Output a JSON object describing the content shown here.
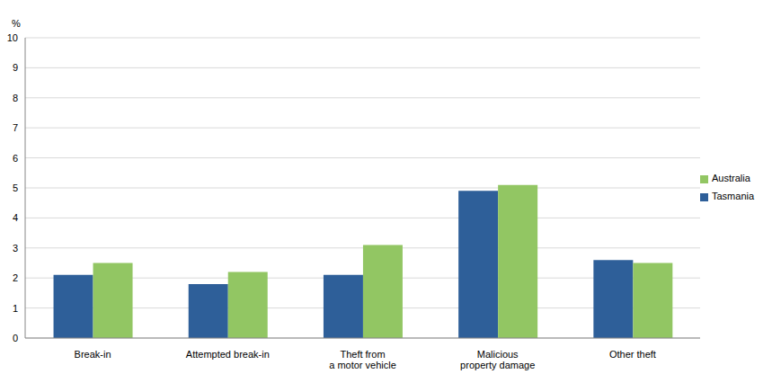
{
  "chart_data": {
    "type": "bar",
    "y_label": "%",
    "categories": [
      "Break-in",
      "Attempted break-in",
      "Theft from\na motor vehicle",
      "Malicious\nproperty damage",
      "Other theft"
    ],
    "series": [
      {
        "name": "Tasmania",
        "color": "#2e5f99",
        "values": [
          2.1,
          1.8,
          2.1,
          4.9,
          2.6
        ]
      },
      {
        "name": "Australia",
        "color": "#92c663",
        "values": [
          2.5,
          2.2,
          3.1,
          5.1,
          2.5
        ]
      }
    ],
    "ylim": [
      0,
      10
    ],
    "yticks": [
      0,
      1,
      2,
      3,
      4,
      5,
      6,
      7,
      8,
      9,
      10
    ],
    "grid": true,
    "legend": "right"
  }
}
